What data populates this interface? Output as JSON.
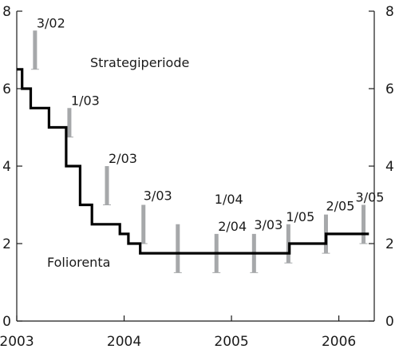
{
  "chart_data": {
    "type": "line",
    "x_ticks": [
      "2003",
      "2004",
      "2005",
      "2006"
    ],
    "y_ticks_left": [
      "0",
      "2",
      "4",
      "6",
      "8"
    ],
    "y_ticks_right": [
      "0",
      "2",
      "4",
      "6",
      "8"
    ],
    "xlim": [
      2003.0,
      2006.33
    ],
    "ylim": [
      0,
      8
    ],
    "grid": false,
    "annotations": [
      {
        "text": "Strategiperiode"
      },
      {
        "text": "Foliorenta"
      }
    ],
    "series": [
      {
        "name": "Foliorenta",
        "style": "step",
        "color": "#000000",
        "points": [
          {
            "x": 2003.0,
            "y": 6.5
          },
          {
            "x": 2003.05,
            "y": 6.5
          },
          {
            "x": 2003.05,
            "y": 6.0
          },
          {
            "x": 2003.13,
            "y": 6.0
          },
          {
            "x": 2003.13,
            "y": 5.5
          },
          {
            "x": 2003.3,
            "y": 5.5
          },
          {
            "x": 2003.3,
            "y": 5.0
          },
          {
            "x": 2003.46,
            "y": 5.0
          },
          {
            "x": 2003.46,
            "y": 4.0
          },
          {
            "x": 2003.59,
            "y": 4.0
          },
          {
            "x": 2003.59,
            "y": 3.0
          },
          {
            "x": 2003.7,
            "y": 3.0
          },
          {
            "x": 2003.7,
            "y": 2.5
          },
          {
            "x": 2003.96,
            "y": 2.5
          },
          {
            "x": 2003.96,
            "y": 2.25
          },
          {
            "x": 2004.04,
            "y": 2.25
          },
          {
            "x": 2004.04,
            "y": 2.0
          },
          {
            "x": 2004.15,
            "y": 2.0
          },
          {
            "x": 2004.15,
            "y": 1.75
          },
          {
            "x": 2005.54,
            "y": 1.75
          },
          {
            "x": 2005.54,
            "y": 2.0
          },
          {
            "x": 2005.88,
            "y": 2.0
          },
          {
            "x": 2005.88,
            "y": 2.25
          },
          {
            "x": 2006.28,
            "y": 2.25
          }
        ]
      }
    ],
    "intervals": [
      {
        "label": "3/02",
        "x": 2003.17,
        "low": 6.5,
        "high": 7.5
      },
      {
        "label": "1/03",
        "x": 2003.49,
        "low": 4.75,
        "high": 5.5
      },
      {
        "label": "2/03",
        "x": 2003.84,
        "low": 3.0,
        "high": 4.0
      },
      {
        "label": "3/03",
        "x": 2004.18,
        "low": 2.0,
        "high": 3.0
      },
      {
        "label": "1/04",
        "x": 2004.5,
        "low": 1.25,
        "high": 2.5
      },
      {
        "label": "2/04",
        "x": 2004.86,
        "low": 1.25,
        "high": 2.25
      },
      {
        "label": "3/03",
        "x": 2005.21,
        "low": 1.25,
        "high": 2.25
      },
      {
        "label": "1/05",
        "x": 2005.53,
        "low": 1.5,
        "high": 2.5
      },
      {
        "label": "2/05",
        "x": 2005.88,
        "low": 1.75,
        "high": 2.75
      },
      {
        "label": "3/05",
        "x": 2006.23,
        "low": 2.0,
        "high": 3.0
      }
    ]
  },
  "colors": {
    "step_line": "#000000",
    "interval_bar": "#a6a8aa",
    "axis": "#1a1a1a"
  }
}
